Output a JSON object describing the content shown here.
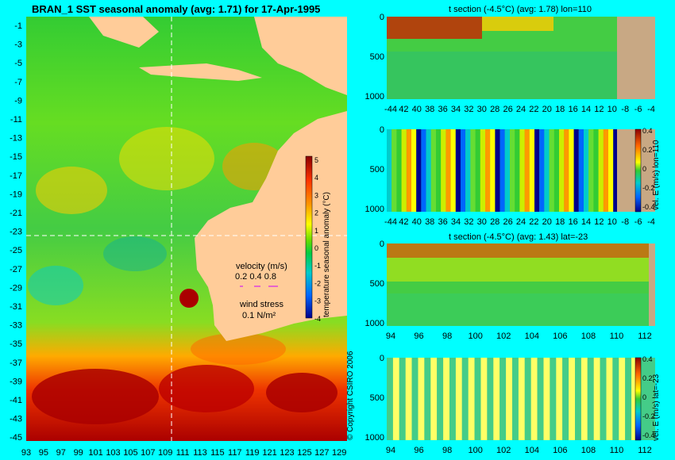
{
  "colors": {
    "background": "#00ffff",
    "land": "#ffcc99",
    "land_section": "#c8a884",
    "warm_max": "#8b0000",
    "cold_min": "#00008b"
  },
  "map_panel": {
    "title": "BRAN_1 SST seasonal anomaly (avg: 1.71) for 17-Apr-1995",
    "colorbar_label": "temperature seasonal anomaly (°C)",
    "colorbar_ticks": [
      "5",
      "4",
      "3",
      "2",
      "1",
      "0",
      "-1",
      "-2",
      "-3",
      "-4"
    ],
    "velocity_label": "velocity (m/s)",
    "velocity_scale": "0.2 0.4 0.8",
    "wind_label": "wind stress",
    "wind_scale": "0.1 N/m²",
    "copyright": "© Copyright CSIRO 2006"
  },
  "chart_data": [
    {
      "type": "heatmap",
      "title": "BRAN_1 SST seasonal anomaly (avg: 1.71) for 17-Apr-1995",
      "x_ticks": [
        "93",
        "95",
        "97",
        "99",
        "101",
        "103",
        "105",
        "107",
        "109",
        "111",
        "113",
        "115",
        "117",
        "119",
        "121",
        "123",
        "125",
        "127",
        "129"
      ],
      "y_ticks": [
        "-1",
        "-3",
        "-5",
        "-7",
        "-9",
        "-11",
        "-13",
        "-15",
        "-17",
        "-19",
        "-21",
        "-23",
        "-25",
        "-27",
        "-29",
        "-31",
        "-33",
        "-35",
        "-37",
        "-39",
        "-41",
        "-43",
        "-45"
      ],
      "xlim": [
        93,
        130
      ],
      "ylim": [
        -45,
        0
      ],
      "colorbar": {
        "label": "temperature seasonal anomaly (°C)",
        "range": [
          -4,
          5
        ]
      },
      "section_lines": {
        "lon": 110,
        "lat": -23
      }
    },
    {
      "type": "heatmap",
      "title": "t section (-4.5°C) (avg: 1.78) lon=110",
      "x_ticks": [
        "-44",
        "42",
        "40",
        "38",
        "36",
        "34",
        "32",
        "30",
        "28",
        "26",
        "24",
        "22",
        "20",
        "18",
        "16",
        "14",
        "12",
        "10",
        "-8",
        "-6",
        "-4"
      ],
      "y_ticks": [
        "0",
        "500",
        "1000"
      ],
      "xlim": [
        -45,
        -2
      ],
      "ylim": [
        1050,
        0
      ]
    },
    {
      "type": "heatmap",
      "title": "",
      "x_ticks": [
        "-44",
        "42",
        "40",
        "38",
        "36",
        "34",
        "32",
        "30",
        "28",
        "26",
        "24",
        "22",
        "20",
        "18",
        "16",
        "14",
        "12",
        "10",
        "-8",
        "-6",
        "-4"
      ],
      "y_ticks": [
        "0",
        "500",
        "1000"
      ],
      "xlim": [
        -45,
        -2
      ],
      "ylim": [
        1050,
        0
      ],
      "colorbar": {
        "label": "vel. E (m/s) lon=110",
        "ticks": [
          "0.4",
          "0.2",
          "0",
          "-0.2",
          "-0.4"
        ],
        "range": [
          -0.4,
          0.4
        ]
      }
    },
    {
      "type": "heatmap",
      "title": "t section (-4.5°C) (avg: 1.43) lat=-23",
      "x_ticks": [
        "94",
        "96",
        "98",
        "100",
        "102",
        "104",
        "106",
        "108",
        "110",
        "112"
      ],
      "y_ticks": [
        "0",
        "500",
        "1000"
      ],
      "xlim": [
        93,
        114
      ],
      "ylim": [
        1050,
        0
      ]
    },
    {
      "type": "heatmap",
      "title": "",
      "x_ticks": [
        "94",
        "96",
        "98",
        "100",
        "102",
        "104",
        "106",
        "108",
        "110",
        "112"
      ],
      "y_ticks": [
        "0",
        "500",
        "1000"
      ],
      "xlim": [
        93,
        114
      ],
      "ylim": [
        1050,
        0
      ],
      "colorbar": {
        "label": "vel. E (m/s) lat=-23",
        "ticks": [
          "0.4",
          "0.2",
          "0",
          "-0.2",
          "-0.4"
        ],
        "range": [
          -0.4,
          0.4
        ]
      }
    }
  ]
}
